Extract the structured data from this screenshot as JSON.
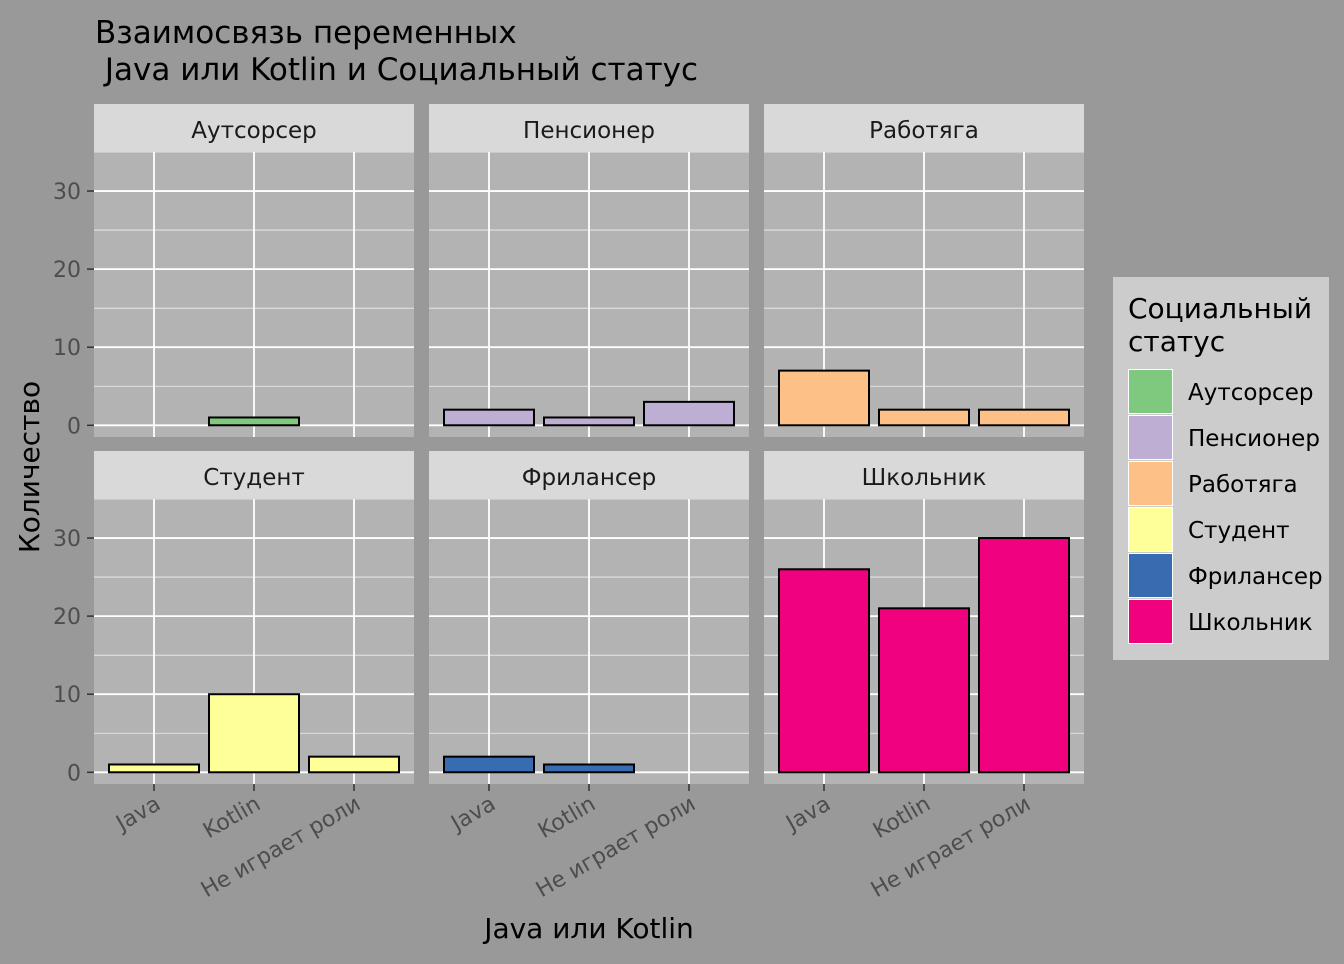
{
  "chart_data": {
    "type": "bar",
    "title_line1": "Взаимосвязь переменных",
    "title_line2": " Java или Kotlin и Социальный статус",
    "xlabel": "Java или Kotlin",
    "ylabel": "Количество",
    "categories": [
      "Java",
      "Kotlin",
      "Не играет роли"
    ],
    "ylim": [
      -1.5,
      35
    ],
    "yticks": [
      0,
      10,
      20,
      30
    ],
    "grid": true,
    "legend": {
      "title_line1": "Социальный",
      "title_line2": "статус",
      "placement": "right"
    },
    "facets": [
      {
        "name": "Аутсорсер",
        "color": "#7FC97F",
        "values": [
          0,
          1,
          0
        ]
      },
      {
        "name": "Пенсионер",
        "color": "#BEAED4",
        "values": [
          2,
          1,
          3
        ]
      },
      {
        "name": "Работяга",
        "color": "#FDC086",
        "values": [
          7,
          2,
          2
        ]
      },
      {
        "name": "Студент",
        "color": "#FFFF99",
        "values": [
          1,
          10,
          2
        ]
      },
      {
        "name": "Фрилансер",
        "color": "#386CB0",
        "values": [
          2,
          1,
          0
        ]
      },
      {
        "name": "Школьник",
        "color": "#F0027F",
        "values": [
          26,
          21,
          30
        ]
      }
    ]
  }
}
